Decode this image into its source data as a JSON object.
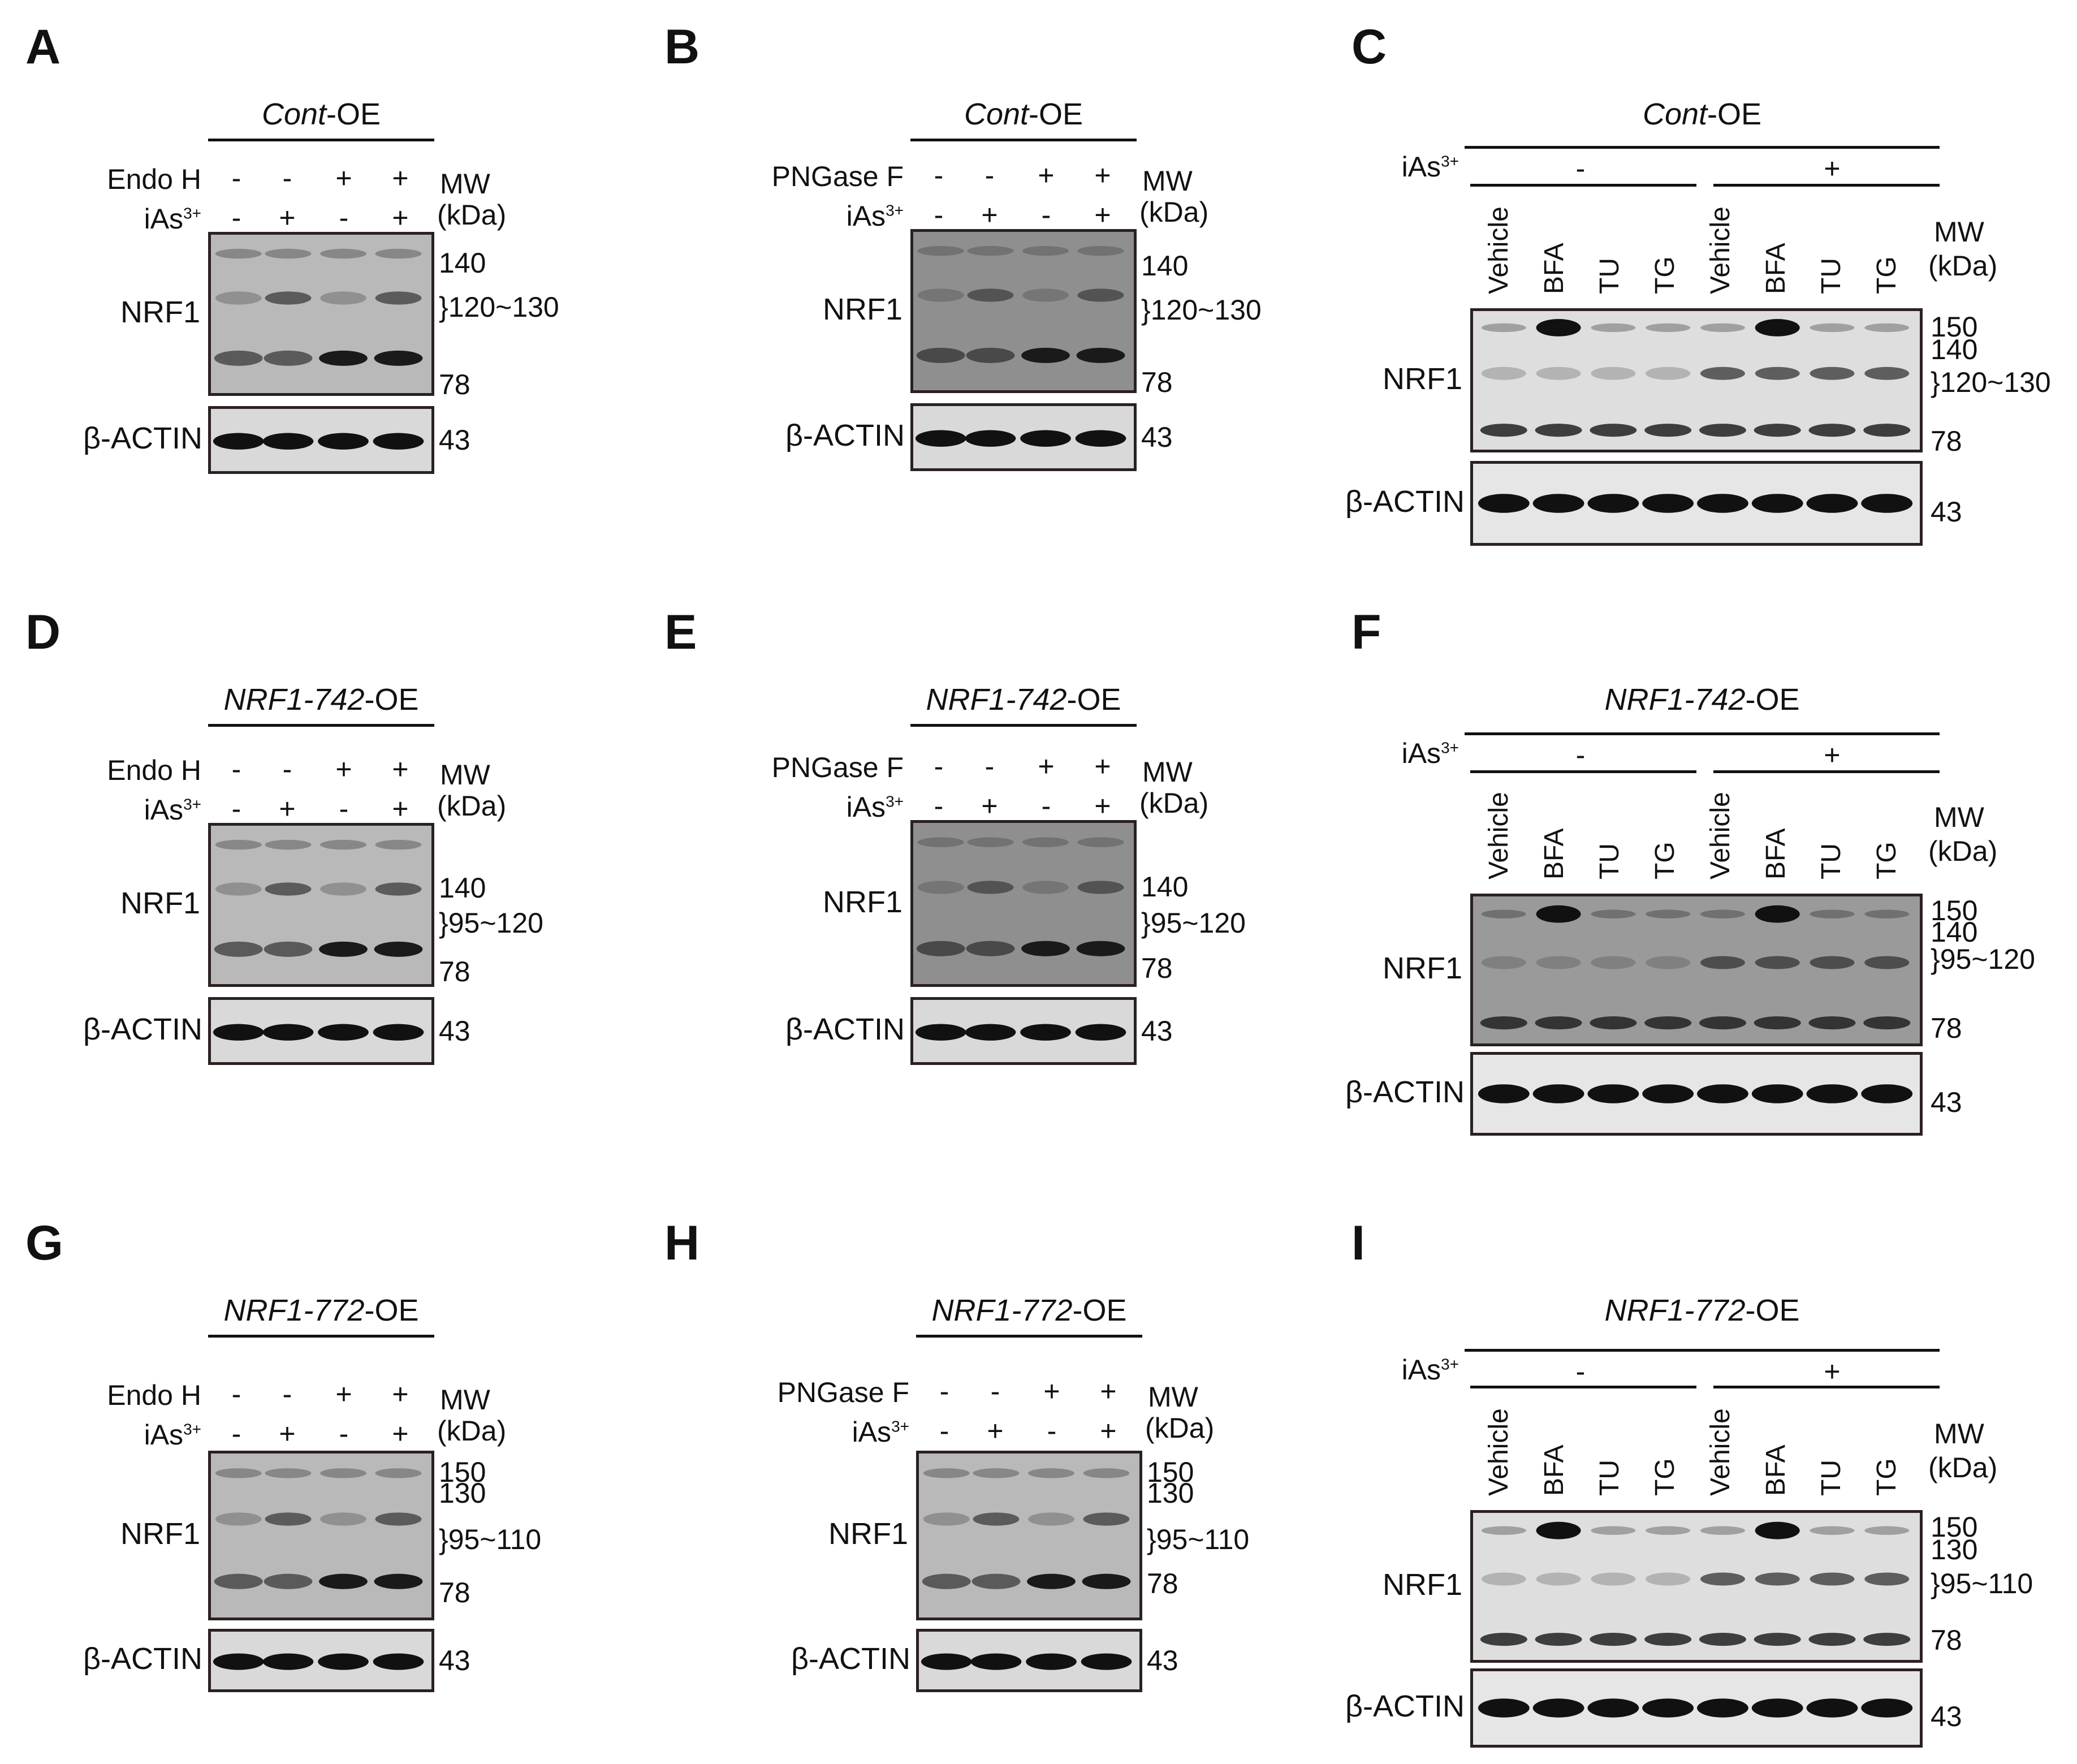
{
  "panels": [
    {
      "id": "A",
      "title_italic": "Cont",
      "title_rest": "-OE",
      "treat1_label": "Endo H",
      "treat2_label": "iAs",
      "treat2_sup": "3+",
      "treat1_signs": [
        "-",
        "-",
        "+",
        "+"
      ],
      "treat2_signs": [
        "-",
        "+",
        "-",
        "+"
      ],
      "mw_label": "MW",
      "kda_label": "(kDa)",
      "protein_label": "NRF1",
      "loading_label": "β-ACTIN",
      "markers": [
        "140",
        "}120~130",
        "78"
      ],
      "actin_marker": "43"
    },
    {
      "id": "B",
      "title_italic": "Cont",
      "title_rest": "-OE",
      "treat1_label": "PNGase F",
      "treat2_label": "iAs",
      "treat2_sup": "3+",
      "treat1_signs": [
        "-",
        "-",
        "+",
        "+"
      ],
      "treat2_signs": [
        "-",
        "+",
        "-",
        "+"
      ],
      "mw_label": "MW",
      "kda_label": "(kDa)",
      "protein_label": "NRF1",
      "loading_label": "β-ACTIN",
      "markers": [
        "140",
        "}120~130",
        "78"
      ],
      "actin_marker": "43"
    },
    {
      "id": "C",
      "title_italic": "Cont",
      "title_rest": "-OE",
      "treat_label": "iAs",
      "treat_sup": "3+",
      "group_signs": [
        "-",
        "+"
      ],
      "lanes": [
        "Vehicle",
        "BFA",
        "TU",
        "TG",
        "Vehicle",
        "BFA",
        "TU",
        "TG"
      ],
      "mw_label": "MW",
      "kda_label": "(kDa)",
      "protein_label": "NRF1",
      "loading_label": "β-ACTIN",
      "markers": [
        "150",
        "140",
        "}120~130",
        "78"
      ],
      "actin_marker": "43"
    },
    {
      "id": "D",
      "title_italic": "NRF1-742",
      "title_rest": "-OE",
      "treat1_label": "Endo H",
      "treat2_label": "iAs",
      "treat2_sup": "3+",
      "treat1_signs": [
        "-",
        "-",
        "+",
        "+"
      ],
      "treat2_signs": [
        "-",
        "+",
        "-",
        "+"
      ],
      "mw_label": "MW",
      "kda_label": "(kDa)",
      "protein_label": "NRF1",
      "loading_label": "β-ACTIN",
      "markers": [
        "140",
        "}95~120",
        "78"
      ],
      "actin_marker": "43"
    },
    {
      "id": "E",
      "title_italic": "NRF1-742",
      "title_rest": "-OE",
      "treat1_label": "PNGase F",
      "treat2_label": "iAs",
      "treat2_sup": "3+",
      "treat1_signs": [
        "-",
        "-",
        "+",
        "+"
      ],
      "treat2_signs": [
        "-",
        "+",
        "-",
        "+"
      ],
      "mw_label": "MW",
      "kda_label": "(kDa)",
      "protein_label": "NRF1",
      "loading_label": "β-ACTIN",
      "markers": [
        "140",
        "}95~120",
        "78"
      ],
      "actin_marker": "43"
    },
    {
      "id": "F",
      "title_italic": "NRF1-742",
      "title_rest": "-OE",
      "treat_label": "iAs",
      "treat_sup": "3+",
      "group_signs": [
        "-",
        "+"
      ],
      "lanes": [
        "Vehicle",
        "BFA",
        "TU",
        "TG",
        "Vehicle",
        "BFA",
        "TU",
        "TG"
      ],
      "mw_label": "MW",
      "kda_label": "(kDa)",
      "protein_label": "NRF1",
      "loading_label": "β-ACTIN",
      "markers": [
        "150",
        "140",
        "}95~120",
        "78"
      ],
      "actin_marker": "43"
    },
    {
      "id": "G",
      "title_italic": "NRF1-772",
      "title_rest": "-OE",
      "treat1_label": "Endo H",
      "treat2_label": "iAs",
      "treat2_sup": "3+",
      "treat1_signs": [
        "-",
        "-",
        "+",
        "+"
      ],
      "treat2_signs": [
        "-",
        "+",
        "-",
        "+"
      ],
      "mw_label": "MW",
      "kda_label": "(kDa)",
      "protein_label": "NRF1",
      "loading_label": "β-ACTIN",
      "markers": [
        "150",
        "130",
        "}95~110",
        "78"
      ],
      "actin_marker": "43"
    },
    {
      "id": "H",
      "title_italic": "NRF1-772",
      "title_rest": "-OE",
      "treat1_label": "PNGase F",
      "treat2_label": "iAs",
      "treat2_sup": "3+",
      "treat1_signs": [
        "-",
        "-",
        "+",
        "+"
      ],
      "treat2_signs": [
        "-",
        "+",
        "-",
        "+"
      ],
      "mw_label": "MW",
      "kda_label": "(kDa)",
      "protein_label": "NRF1",
      "loading_label": "β-ACTIN",
      "markers": [
        "150",
        "130",
        "}95~110",
        "78"
      ],
      "actin_marker": "43"
    },
    {
      "id": "I",
      "title_italic": "NRF1-772",
      "title_rest": "-OE",
      "treat_label": "iAs",
      "treat_sup": "3+",
      "group_signs": [
        "-",
        "+"
      ],
      "lanes": [
        "Vehicle",
        "BFA",
        "TU",
        "TG",
        "Vehicle",
        "BFA",
        "TU",
        "TG"
      ],
      "mw_label": "MW",
      "kda_label": "(kDa)",
      "protein_label": "NRF1",
      "loading_label": "β-ACTIN",
      "markers": [
        "150",
        "130",
        "}95~110",
        "78"
      ],
      "actin_marker": "43"
    }
  ]
}
